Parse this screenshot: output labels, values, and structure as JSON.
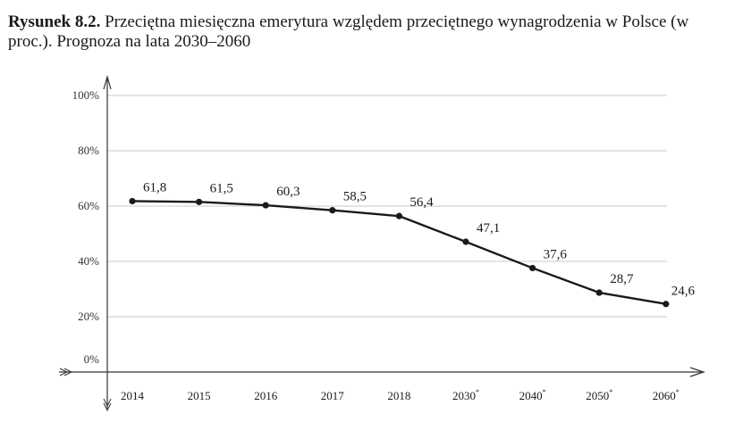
{
  "caption": {
    "label": "Rysunek 8.2.",
    "text": " Przeciętna miesięczna emerytura względem przeciętnego wynagrodzenia w Polsce (w proc.). Prognoza na lata 2030–2060"
  },
  "chart_data": {
    "type": "line",
    "title": "Rysunek 8.2. Przeciętna miesięczna emerytura względem przeciętnego wynagrodzenia w Polsce (w proc.). Prognoza na lata 2030–2060",
    "categories": [
      "2014",
      "2015",
      "2016",
      "2017",
      "2018",
      "2030*",
      "2040*",
      "2050*",
      "2060*"
    ],
    "category_markers": [
      "",
      "",
      "",
      "",
      "",
      "*",
      "*",
      "*",
      "*"
    ],
    "category_base": [
      "2014",
      "2015",
      "2016",
      "2017",
      "2018",
      "2030",
      "2040",
      "2050",
      "2060"
    ],
    "series": [
      {
        "values": [
          61.8,
          61.5,
          60.3,
          58.5,
          56.4,
          47.1,
          37.6,
          28.7,
          24.6
        ]
      }
    ],
    "data_labels": [
      "61,8",
      "61,5",
      "60,3",
      "58,5",
      "56,4",
      "47,1",
      "37,6",
      "28,7",
      "24,6"
    ],
    "y_ticks": [
      0,
      20,
      40,
      60,
      80,
      100
    ],
    "y_tick_labels": [
      "0%",
      "20%",
      "40%",
      "60%",
      "80%",
      "100%"
    ],
    "ylim": [
      0,
      100
    ],
    "grid": true,
    "legend": "none",
    "colors": {
      "line": "#1a1a1a",
      "grid": "#c8c8c8",
      "axis": "#333333"
    }
  }
}
